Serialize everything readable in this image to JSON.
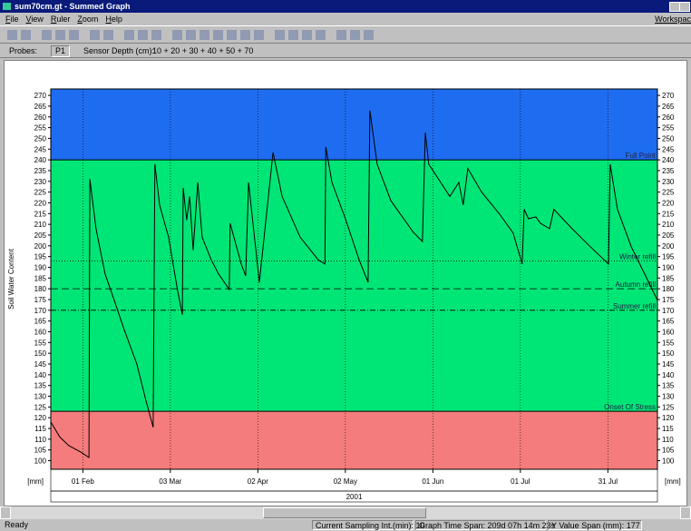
{
  "window": {
    "title": "sum70cm.gt - Summed Graph"
  },
  "menu": [
    "File",
    "View",
    "Ruler",
    "Zoom",
    "Help"
  ],
  "menu_right": "Workspac",
  "probes": {
    "label": "Probes:",
    "probe": "P1",
    "depth_label": "Sensor Depth (cm):",
    "depth": "10 + 20 + 30 + 40 + 50 + 70"
  },
  "chart_data": {
    "type": "line",
    "y_label": "Soil Water Content",
    "unit_label": "[mm]",
    "year": "2001",
    "xlim": [
      0,
      208
    ],
    "xticks": [
      {
        "value": 11,
        "label": "01 Feb"
      },
      {
        "value": 41,
        "label": "03 Mar"
      },
      {
        "value": 71,
        "label": "02 Apr"
      },
      {
        "value": 101,
        "label": "02 May"
      },
      {
        "value": 131,
        "label": "01 Jun"
      },
      {
        "value": 161,
        "label": "01 Jul"
      },
      {
        "value": 191,
        "label": "31 Jul"
      }
    ],
    "ylim": [
      96,
      273
    ],
    "yticks": [
      100,
      105,
      110,
      115,
      120,
      125,
      130,
      135,
      140,
      145,
      150,
      155,
      160,
      165,
      170,
      175,
      180,
      185,
      190,
      195,
      200,
      205,
      210,
      215,
      220,
      225,
      230,
      235,
      240,
      245,
      250,
      255,
      260,
      265,
      270
    ],
    "grid": true,
    "zone_colors": [
      "#f47c7c",
      "#00e676",
      "#1e6cf0"
    ],
    "reference_lines": [
      {
        "label": "Full Point",
        "value": 240,
        "style": "solid"
      },
      {
        "label": "Winter refill",
        "value": 193,
        "style": "dotted"
      },
      {
        "label": "Autumn refill",
        "value": 180,
        "style": "dashed"
      },
      {
        "label": "Summer refill",
        "value": 170,
        "style": "dashdot"
      },
      {
        "label": "Onset Of Stress",
        "value": 123,
        "style": "solid"
      }
    ],
    "series": [
      {
        "color": "#000000",
        "x": [
          0,
          3.1,
          6.2,
          10.3,
          13.1,
          13.4,
          15.5,
          18.6,
          21.8,
          24.9,
          29.5,
          32.6,
          35.1,
          35.7,
          37.3,
          40.4,
          43.5,
          45.1,
          45.4,
          46.6,
          47.6,
          48.8,
          50.4,
          51.9,
          55.0,
          57.5,
          61.2,
          61.5,
          65.3,
          66.8,
          67.8,
          71.5,
          76.2,
          79.3,
          85.5,
          91.7,
          94.0,
          94.3,
          96.4,
          101.0,
          105.7,
          108.8,
          109.4,
          111.9,
          116.6,
          124.3,
          127.4,
          128.4,
          129.6,
          133.7,
          136.8,
          139.9,
          141.4,
          143.0,
          147.7,
          153.9,
          158.5,
          161.6,
          162.3,
          163.8,
          166.3,
          167.9,
          171.0,
          172.5,
          178.7,
          185.0,
          191.2,
          191.8,
          194.3,
          199.0,
          203.6,
          208
        ],
        "values": [
          118,
          111,
          107,
          104,
          101.5,
          231,
          208,
          187,
          174.5,
          162,
          145,
          128,
          115.5,
          238,
          219,
          204,
          179,
          168,
          227,
          212,
          223,
          198,
          229.5,
          204,
          193.5,
          187,
          179.7,
          210.5,
          191.5,
          186,
          229.5,
          183,
          243.5,
          223,
          204,
          193.5,
          191.5,
          246,
          229.5,
          212.6,
          193.5,
          183,
          263,
          238,
          221,
          206.3,
          202,
          252.7,
          238,
          229.5,
          223,
          229.5,
          219,
          236,
          225,
          214.7,
          206,
          191.5,
          217,
          212.6,
          213.5,
          210.5,
          208,
          217,
          208,
          199.6,
          191.5,
          238,
          217,
          199.6,
          187,
          174.6
        ]
      }
    ]
  },
  "status": [
    "Ready",
    "Current Sampling Int.(min): 10",
    "Graph Time Span: 209d 07h 14m 23s",
    "Y Value Span (mm): 177"
  ]
}
